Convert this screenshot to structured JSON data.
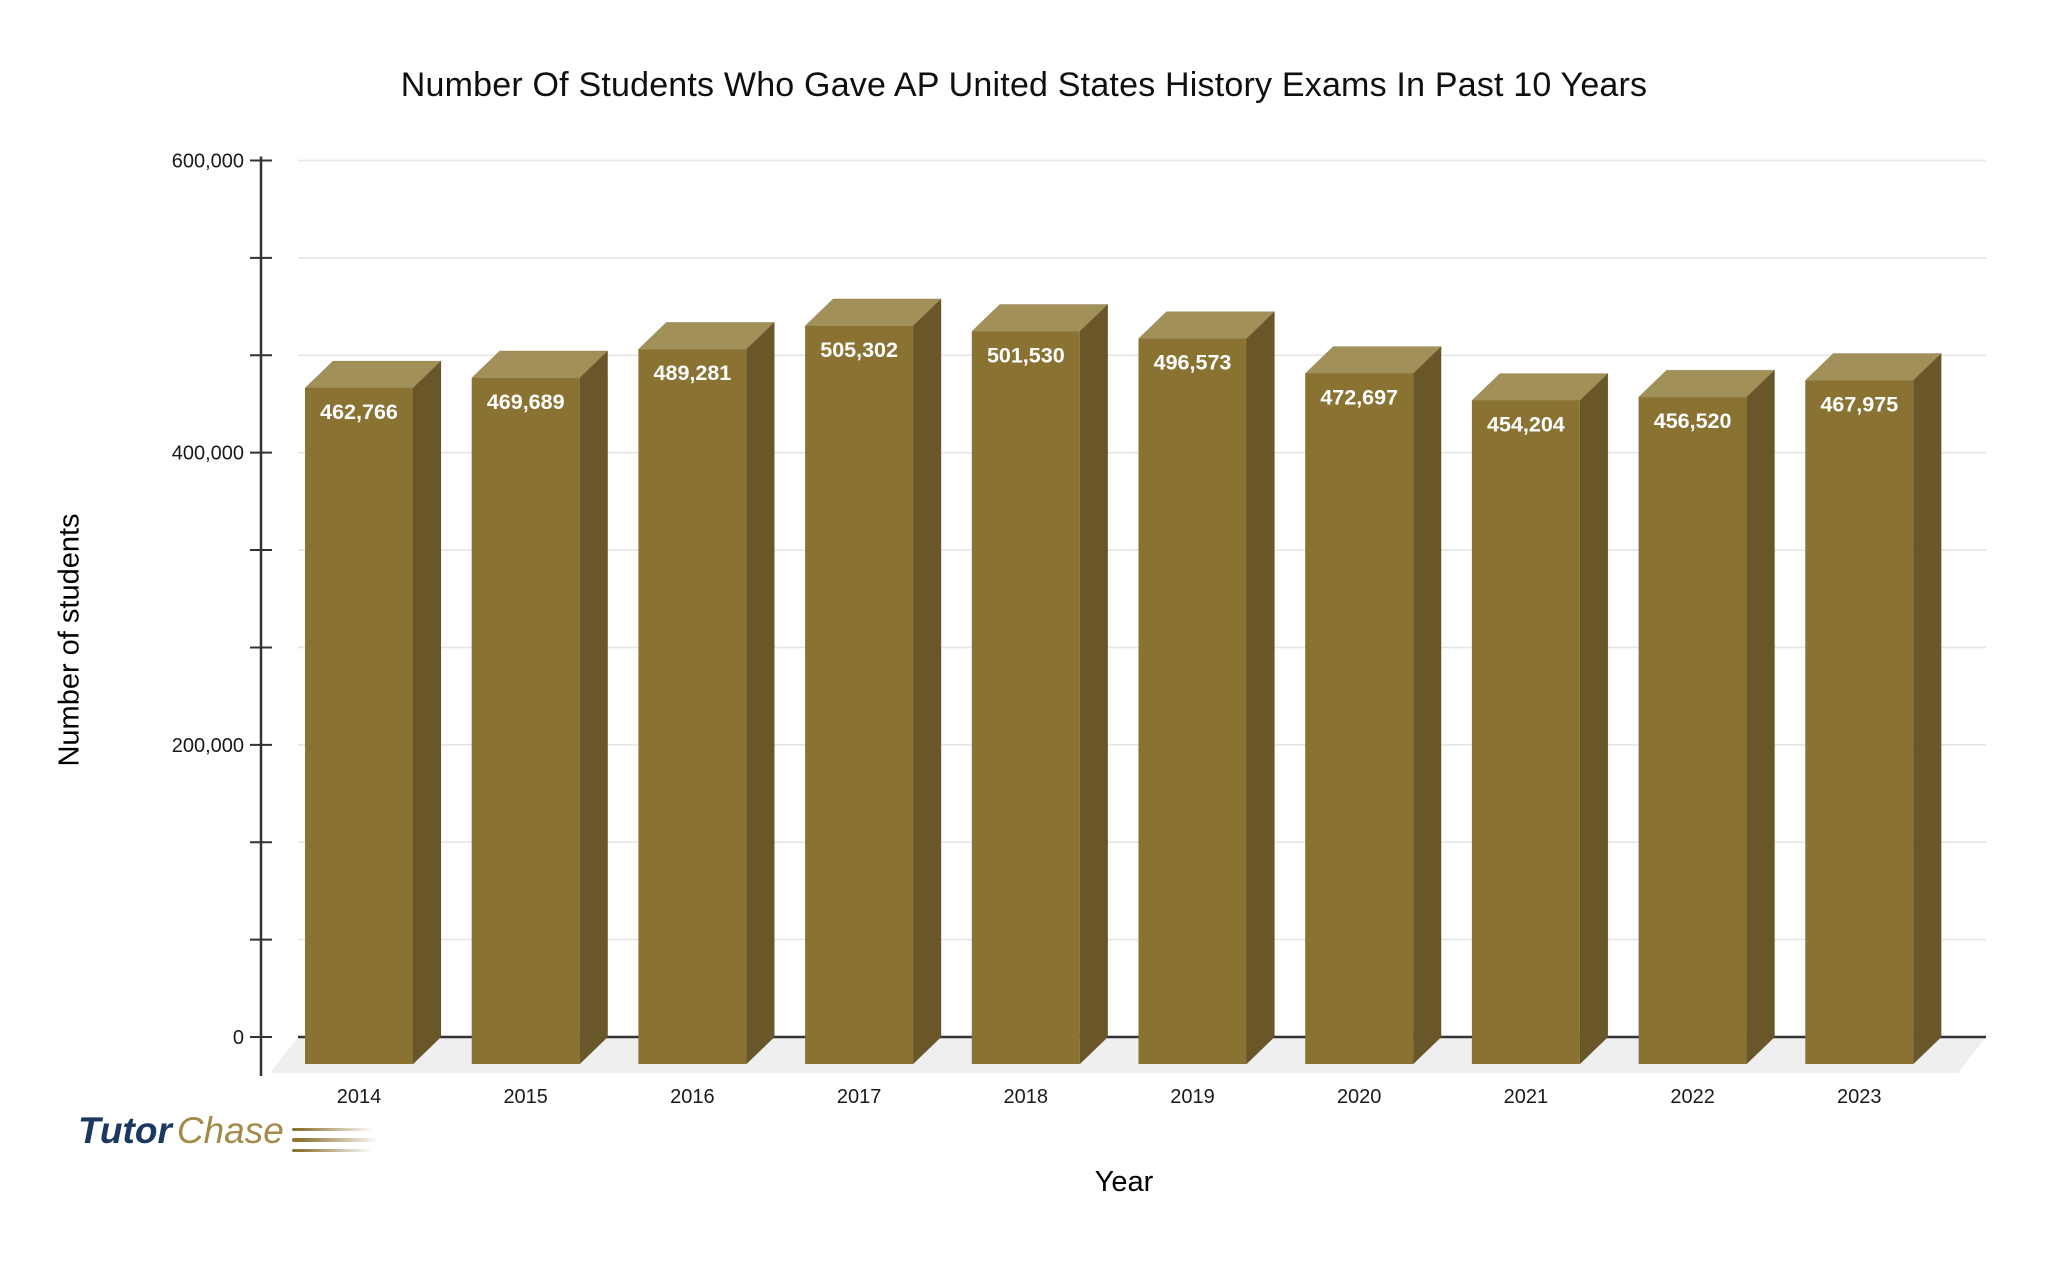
{
  "chart_data": {
    "type": "bar",
    "title": "Number Of Students Who Gave AP United States History Exams In Past 10 Years",
    "xlabel": "Year",
    "ylabel": "Number of students",
    "categories": [
      "2014",
      "2015",
      "2016",
      "2017",
      "2018",
      "2019",
      "2020",
      "2021",
      "2022",
      "2023"
    ],
    "values": [
      462766,
      469689,
      489281,
      505302,
      501530,
      496573,
      472697,
      454204,
      456520,
      467975
    ],
    "value_labels": [
      "462,766",
      "469,689",
      "489,281",
      "505,302",
      "501,530",
      "496,573",
      "472,697",
      "454,204",
      "456,520",
      "467,975"
    ],
    "ylim": [
      0,
      600000
    ],
    "y_ticks": [
      0,
      200000,
      400000,
      600000
    ],
    "y_tick_labels": [
      "0",
      "200,000",
      "400,000",
      "600,000"
    ],
    "y_minor_divisions": 9,
    "grid": true,
    "legend": "none",
    "style_3d": true,
    "colors": {
      "bar_front": "#8A7233",
      "bar_top": "#A19058",
      "bar_side": "#695629",
      "bar_label_text": "#FFFFFF",
      "gridline": "#E6E6E6",
      "axis": "#333333",
      "floor": "#EFEFEF",
      "tick_text": "#1A1A1A"
    }
  },
  "logo": {
    "tutor": "Tutor",
    "chase": "Chase"
  }
}
